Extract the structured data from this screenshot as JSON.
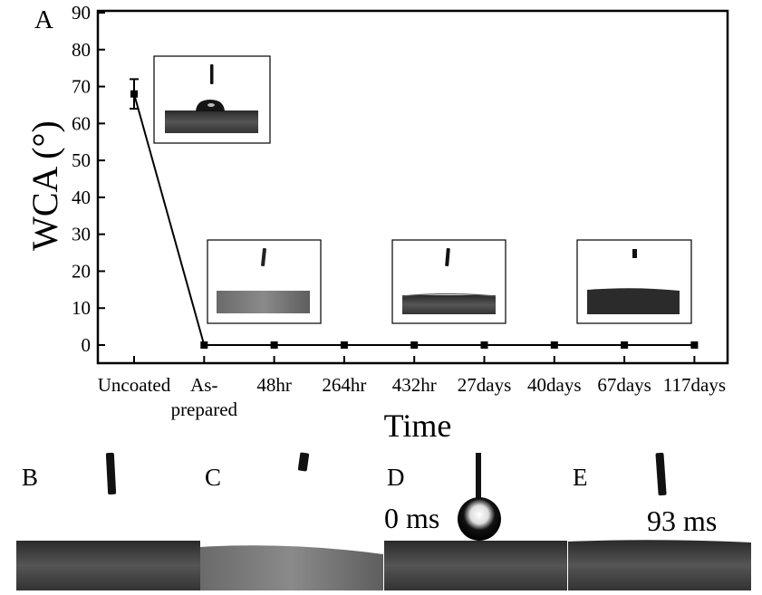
{
  "panel_labels": {
    "a": "A",
    "b": "B",
    "c": "C",
    "d": "D",
    "e": "E"
  },
  "chart_data": {
    "type": "line",
    "title": "",
    "xlabel": "Time",
    "ylabel": "WCA (°)",
    "ylim": [
      0,
      90
    ],
    "yticks": [
      0,
      10,
      20,
      30,
      40,
      50,
      60,
      70,
      80,
      90
    ],
    "categories": [
      "Uncoated",
      "As-prepared",
      "48hr",
      "264hr",
      "432hr",
      "27days",
      "40days",
      "67days",
      "117days"
    ],
    "category_display": [
      [
        "Uncoated"
      ],
      [
        "As-",
        "prepared"
      ],
      [
        "48hr"
      ],
      [
        "264hr"
      ],
      [
        "432hr"
      ],
      [
        "27days"
      ],
      [
        "40days"
      ],
      [
        "67days"
      ],
      [
        "117days"
      ]
    ],
    "values": [
      68,
      0,
      0,
      0,
      0,
      0,
      0,
      0,
      0
    ],
    "error": [
      4,
      0,
      0,
      0,
      0,
      0,
      0,
      0,
      0
    ],
    "grid": false,
    "legend": "none",
    "marker": "square",
    "color": "#000000"
  },
  "photos": {
    "d_time": "0 ms",
    "e_time": "93 ms"
  }
}
